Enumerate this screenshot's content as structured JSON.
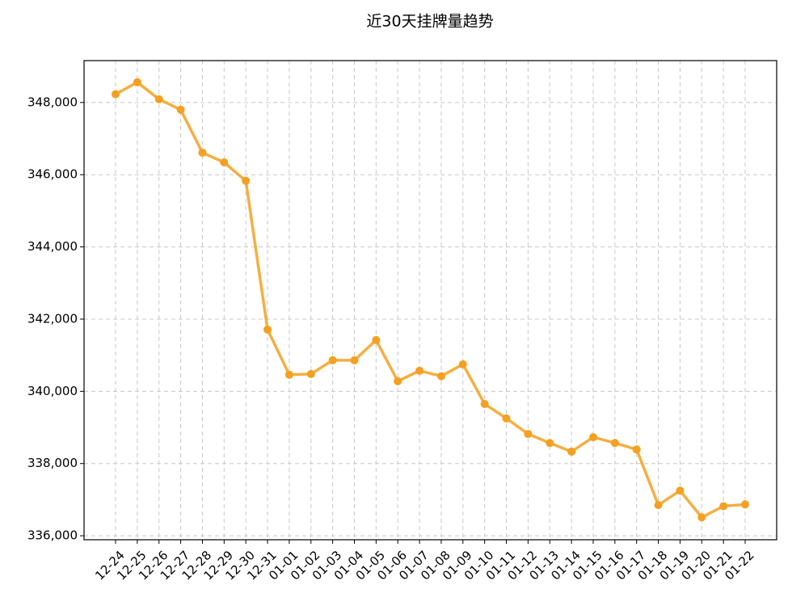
{
  "chart_data": {
    "type": "line",
    "title": "近30天挂牌量趋势",
    "categories": [
      "12-24",
      "12-25",
      "12-26",
      "12-27",
      "12-28",
      "12-29",
      "12-30",
      "12-31",
      "01-01",
      "01-02",
      "01-03",
      "01-04",
      "01-05",
      "01-06",
      "01-07",
      "01-08",
      "01-09",
      "01-10",
      "01-11",
      "01-12",
      "01-13",
      "01-14",
      "01-15",
      "01-16",
      "01-17",
      "01-18",
      "01-19",
      "01-20",
      "01-21",
      "01-22"
    ],
    "series": [
      {
        "color": "#f5a020",
        "values": [
          348230,
          348560,
          348090,
          347800,
          346610,
          346340,
          345830,
          341710,
          340460,
          340480,
          340860,
          340860,
          341420,
          340280,
          340570,
          340420,
          340750,
          339650,
          339250,
          338820,
          338570,
          338330,
          338730,
          338570,
          338390,
          336850,
          337250,
          336510,
          336820,
          336870
        ]
      }
    ],
    "ylim": [
      335890,
      349160
    ],
    "yticks": [
      {
        "value": 336000,
        "label": "336,000"
      },
      {
        "value": 338000,
        "label": "338,000"
      },
      {
        "value": 340000,
        "label": "340,000"
      },
      {
        "value": 342000,
        "label": "342,000"
      },
      {
        "value": 344000,
        "label": "344,000"
      },
      {
        "value": 346000,
        "label": "346,000"
      },
      {
        "value": 348000,
        "label": "348,000"
      }
    ],
    "grid": true
  }
}
